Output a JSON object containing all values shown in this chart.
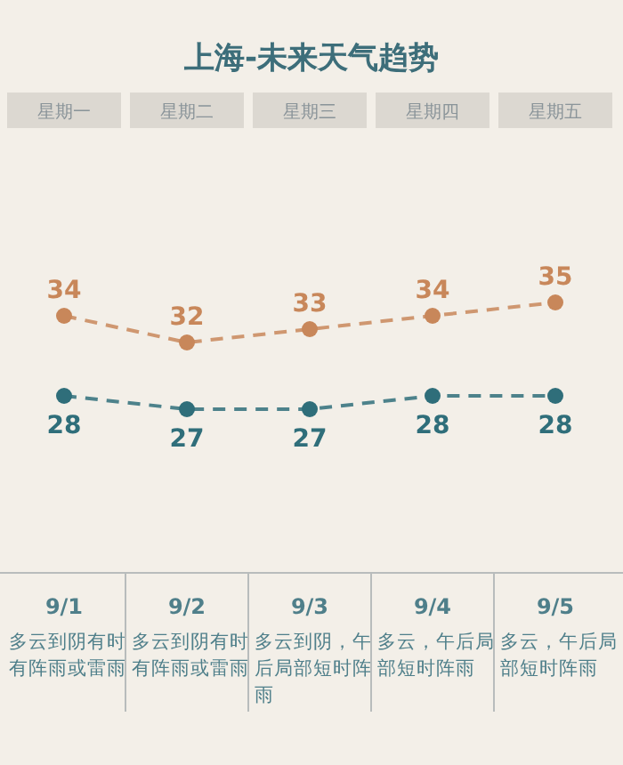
{
  "chart_data": {
    "type": "line",
    "title": "上海-未来天气趋势",
    "categories": [
      "9/1",
      "9/2",
      "9/3",
      "9/4",
      "9/5"
    ],
    "series": [
      {
        "color": "#c8875a",
        "values": [
          34,
          32,
          33,
          34,
          35
        ]
      },
      {
        "color": "#2f6e7a",
        "values": [
          28,
          27,
          27,
          28,
          28
        ]
      }
    ],
    "data_labels": true,
    "marker": "circle",
    "line_style": "dashed",
    "annotations": [
      "星期一",
      "星期二",
      "星期三",
      "星期四",
      "星期五",
      "多云到阴有时有阵雨或雷雨",
      "多云到阴有时有阵雨或雷雨",
      "多云到阴，午后局部短时阵雨",
      "多云，午后局部短时阵雨",
      "多云，午后局部短时阵雨"
    ]
  }
}
